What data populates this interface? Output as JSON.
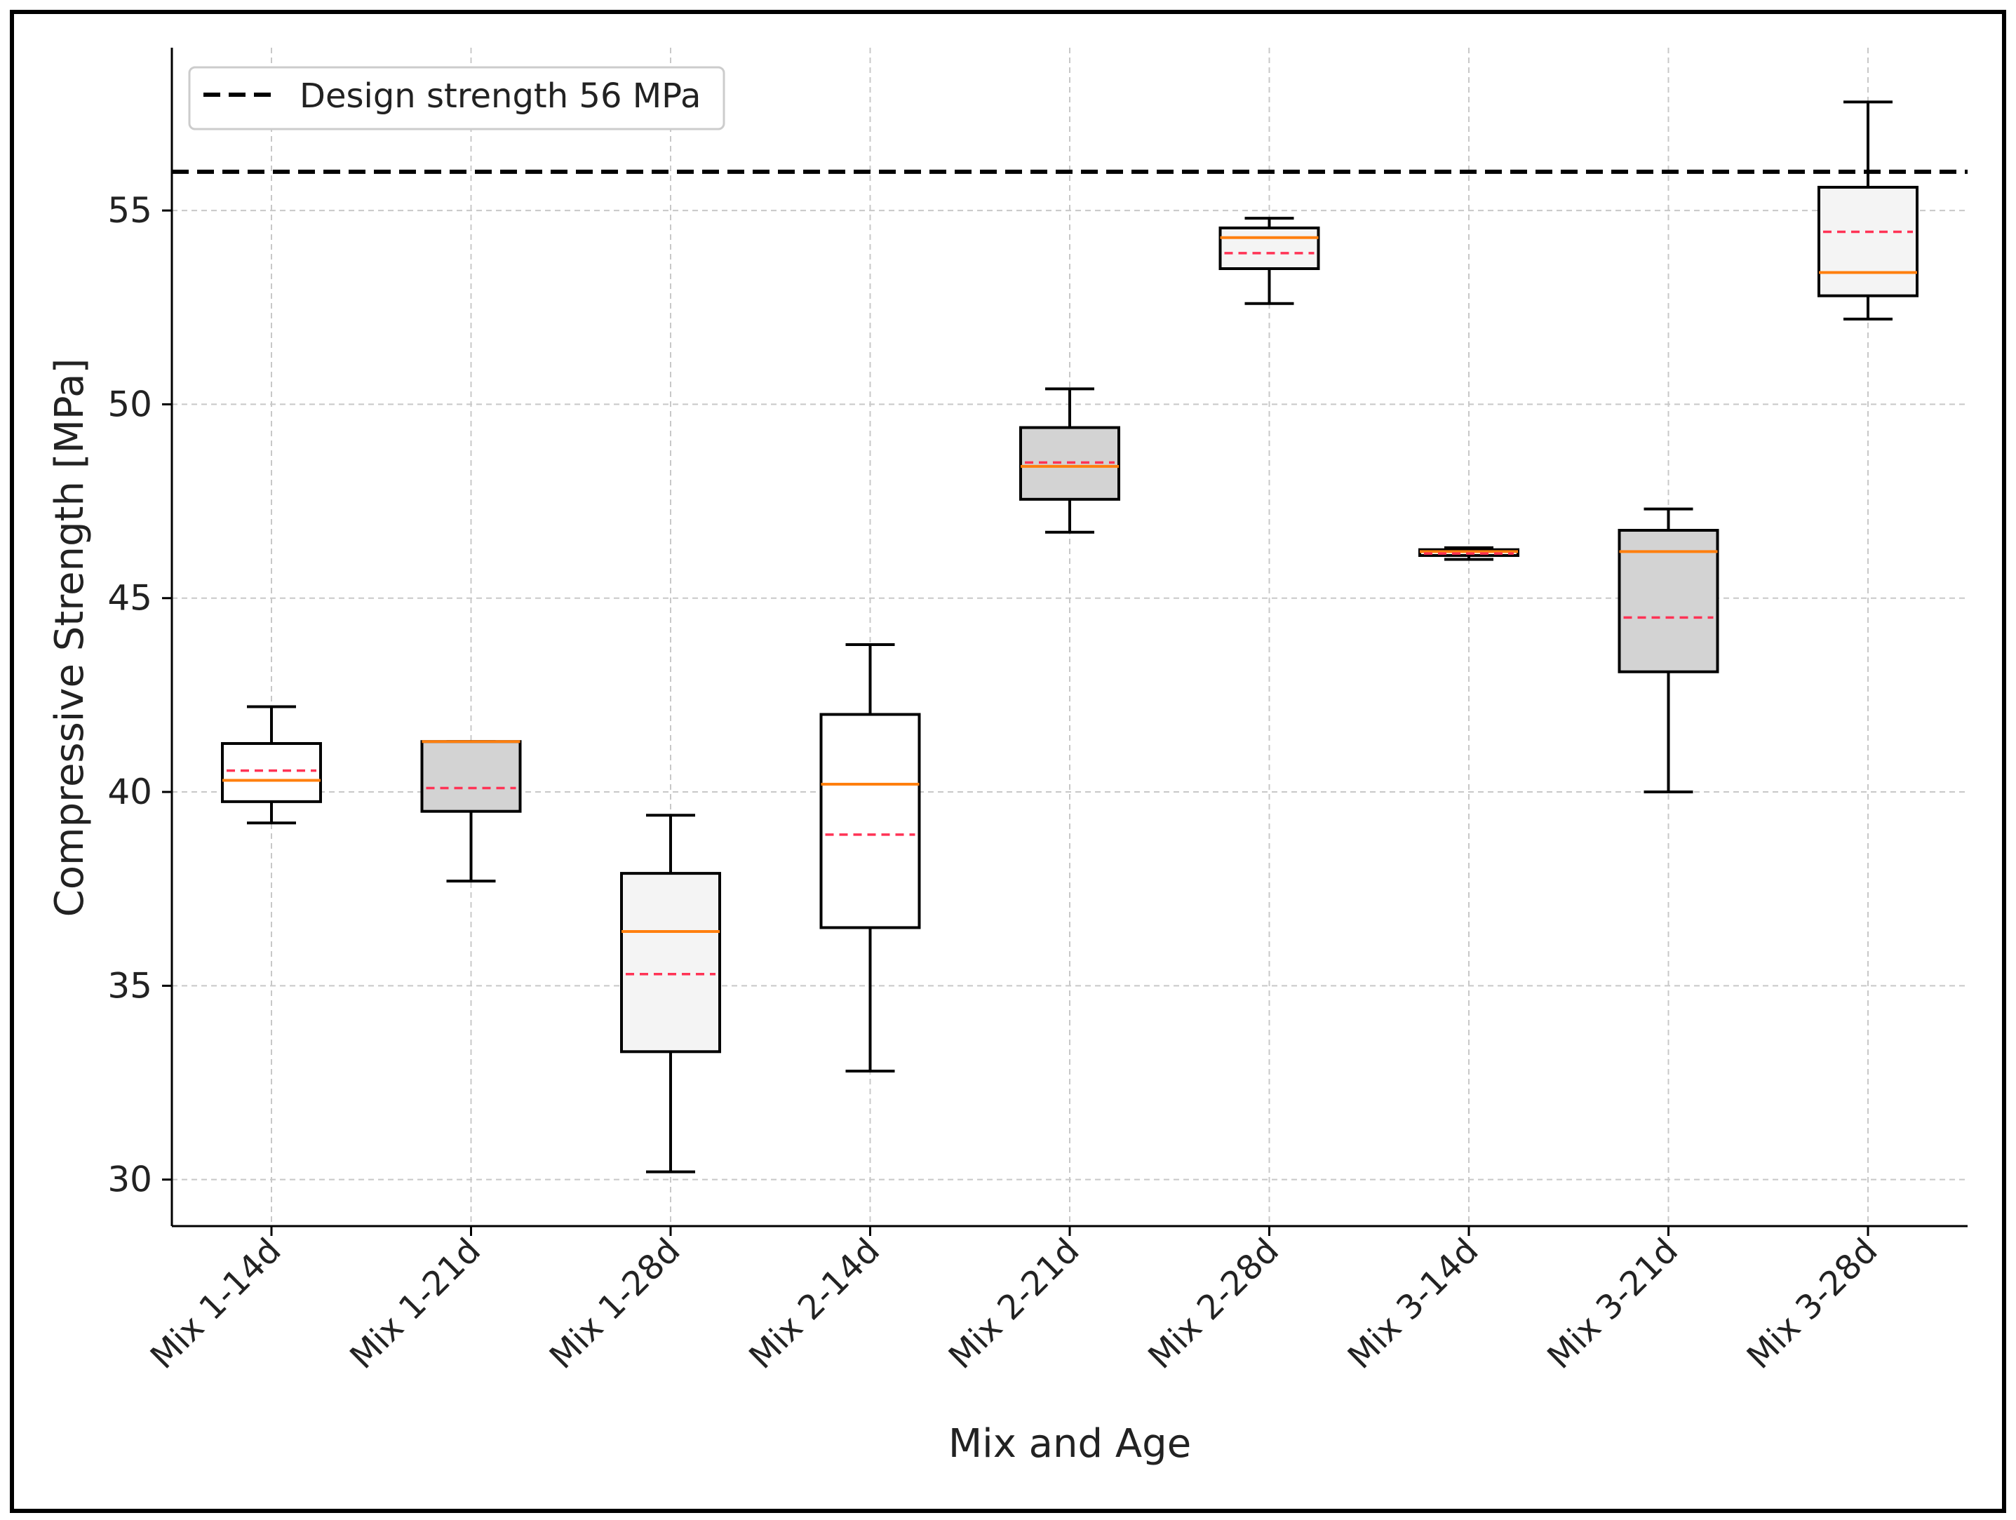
{
  "chart_data": {
    "type": "box",
    "title": "",
    "xlabel": "Mix and Age",
    "ylabel": "Compressive Strength [MPa]",
    "ylim": [
      28.8,
      59.2
    ],
    "yticks": [
      30,
      35,
      40,
      45,
      50,
      55
    ],
    "grid": true,
    "legend": {
      "position": "top-left",
      "label": "Design strength 56 MPa"
    },
    "reference_line": {
      "value": 56,
      "label": "Design strength 56 MPa",
      "style": "dashed",
      "color": "#000000"
    },
    "median_color": "#ff7f0e",
    "mean_color": "#ff3355",
    "categories": [
      "Mix 1-14d",
      "Mix 1-21d",
      "Mix 1-28d",
      "Mix 2-14d",
      "Mix 2-21d",
      "Mix 2-28d",
      "Mix 3-14d",
      "Mix 3-21d",
      "Mix 3-28d"
    ],
    "boxes": [
      {
        "category": "Mix 1-14d",
        "whisker_low": 39.2,
        "q1": 39.75,
        "median": 40.3,
        "mean": 40.55,
        "q3": 41.25,
        "whisker_high": 42.2,
        "fill": "#ffffff"
      },
      {
        "category": "Mix 1-21d",
        "whisker_low": 37.7,
        "q1": 39.5,
        "median": 41.3,
        "mean": 40.1,
        "q3": 41.3,
        "whisker_high": 41.3,
        "fill": "#d3d3d3"
      },
      {
        "category": "Mix 1-28d",
        "whisker_low": 30.2,
        "q1": 33.3,
        "median": 36.4,
        "mean": 35.3,
        "q3": 37.9,
        "whisker_high": 39.4,
        "fill": "#f4f4f4"
      },
      {
        "category": "Mix 2-14d",
        "whisker_low": 32.8,
        "q1": 36.5,
        "median": 40.2,
        "mean": 38.9,
        "q3": 42.0,
        "whisker_high": 43.8,
        "fill": "#ffffff"
      },
      {
        "category": "Mix 2-21d",
        "whisker_low": 46.7,
        "q1": 47.55,
        "median": 48.4,
        "mean": 48.5,
        "q3": 49.4,
        "whisker_high": 50.4,
        "fill": "#d3d3d3"
      },
      {
        "category": "Mix 2-28d",
        "whisker_low": 52.6,
        "q1": 53.5,
        "median": 54.3,
        "mean": 53.9,
        "q3": 54.55,
        "whisker_high": 54.8,
        "fill": "#f4f4f4"
      },
      {
        "category": "Mix 3-14d",
        "whisker_low": 46.0,
        "q1": 46.1,
        "median": 46.2,
        "mean": 46.15,
        "q3": 46.25,
        "whisker_high": 46.3,
        "fill": "#ffffff"
      },
      {
        "category": "Mix 3-21d",
        "whisker_low": 40.0,
        "q1": 43.1,
        "median": 46.2,
        "mean": 44.5,
        "q3": 46.75,
        "whisker_high": 47.3,
        "fill": "#d3d3d3"
      },
      {
        "category": "Mix 3-28d",
        "whisker_low": 52.2,
        "q1": 52.8,
        "median": 53.4,
        "mean": 54.45,
        "q3": 55.6,
        "whisker_high": 57.8,
        "fill": "#f4f4f4"
      }
    ]
  }
}
